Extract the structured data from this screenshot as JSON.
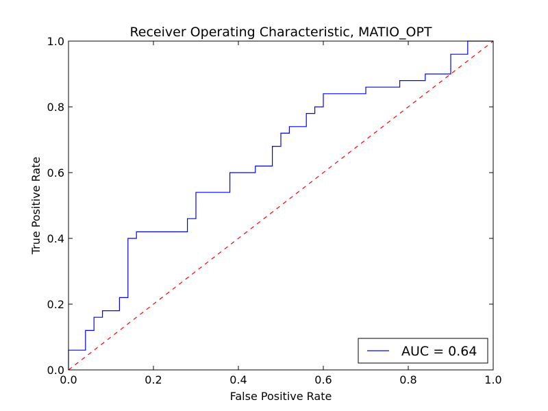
{
  "chart_data": {
    "type": "line",
    "title": "Receiver Operating Characteristic, MATIO_OPT",
    "xlabel": "False Positive Rate",
    "ylabel": "True Positive Rate",
    "xlim": [
      0.0,
      1.0
    ],
    "ylim": [
      0.0,
      1.0
    ],
    "xticks": [
      "0.0",
      "0.2",
      "0.4",
      "0.6",
      "0.8",
      "1.0"
    ],
    "yticks": [
      "0.0",
      "0.2",
      "0.4",
      "0.6",
      "0.8",
      "1.0"
    ],
    "grid": false,
    "legend_position": "lower-right",
    "series": [
      {
        "name": "AUC = 0.64",
        "color": "#0000ff",
        "style": "solid",
        "x": [
          0.0,
          0.0,
          0.04,
          0.04,
          0.06,
          0.06,
          0.08,
          0.08,
          0.12,
          0.12,
          0.14,
          0.14,
          0.16,
          0.16,
          0.28,
          0.28,
          0.3,
          0.3,
          0.38,
          0.38,
          0.44,
          0.44,
          0.48,
          0.48,
          0.5,
          0.5,
          0.52,
          0.52,
          0.56,
          0.56,
          0.58,
          0.58,
          0.6,
          0.6,
          0.7,
          0.7,
          0.78,
          0.78,
          0.84,
          0.84,
          0.9,
          0.9,
          0.94,
          0.94,
          1.0
        ],
        "y": [
          0.0,
          0.06,
          0.06,
          0.12,
          0.12,
          0.16,
          0.16,
          0.18,
          0.18,
          0.22,
          0.22,
          0.4,
          0.4,
          0.42,
          0.42,
          0.46,
          0.46,
          0.54,
          0.54,
          0.6,
          0.6,
          0.62,
          0.62,
          0.68,
          0.68,
          0.72,
          0.72,
          0.74,
          0.74,
          0.78,
          0.78,
          0.8,
          0.8,
          0.84,
          0.84,
          0.86,
          0.86,
          0.88,
          0.88,
          0.9,
          0.9,
          0.96,
          0.96,
          1.0,
          1.0
        ]
      },
      {
        "name": "",
        "color": "#ff0000",
        "style": "dashed",
        "x": [
          0.0,
          1.0
        ],
        "y": [
          0.0,
          1.0
        ]
      }
    ]
  }
}
